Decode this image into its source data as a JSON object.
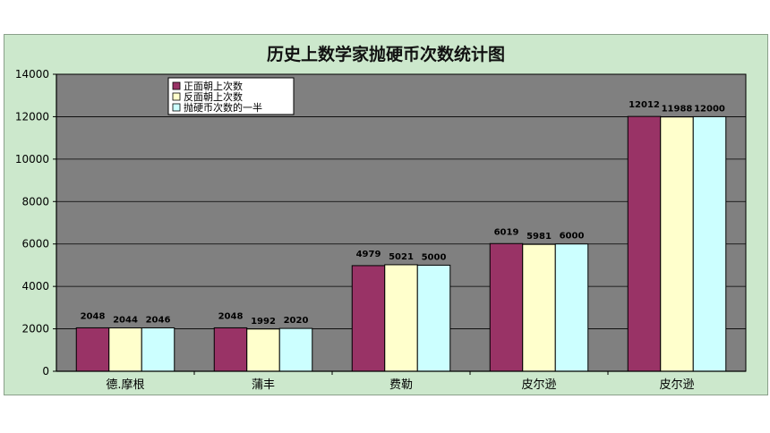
{
  "chart_data": {
    "type": "bar",
    "title": "历史上数学家抛硬币次数统计图",
    "categories": [
      "德.摩根",
      "蒲丰",
      "费勒",
      "皮尔逊",
      "皮尔逊"
    ],
    "series": [
      {
        "name": "正面朝上次数",
        "values": [
          2048,
          2048,
          4979,
          6019,
          12012
        ],
        "color": "#993366"
      },
      {
        "name": "反面朝上次数",
        "values": [
          2044,
          1992,
          5021,
          5981,
          11988
        ],
        "color": "#ffffcc"
      },
      {
        "name": "抛硬币次数的一半",
        "values": [
          2046,
          2020,
          5000,
          6000,
          12000
        ],
        "color": "#ccffff"
      }
    ],
    "ylim": [
      0,
      14000
    ],
    "yticks": [
      0,
      2000,
      4000,
      6000,
      8000,
      10000,
      12000,
      14000
    ],
    "grid": true,
    "legend": "top-left",
    "plot_background": "#808080",
    "chart_background": "#cce8cc"
  }
}
